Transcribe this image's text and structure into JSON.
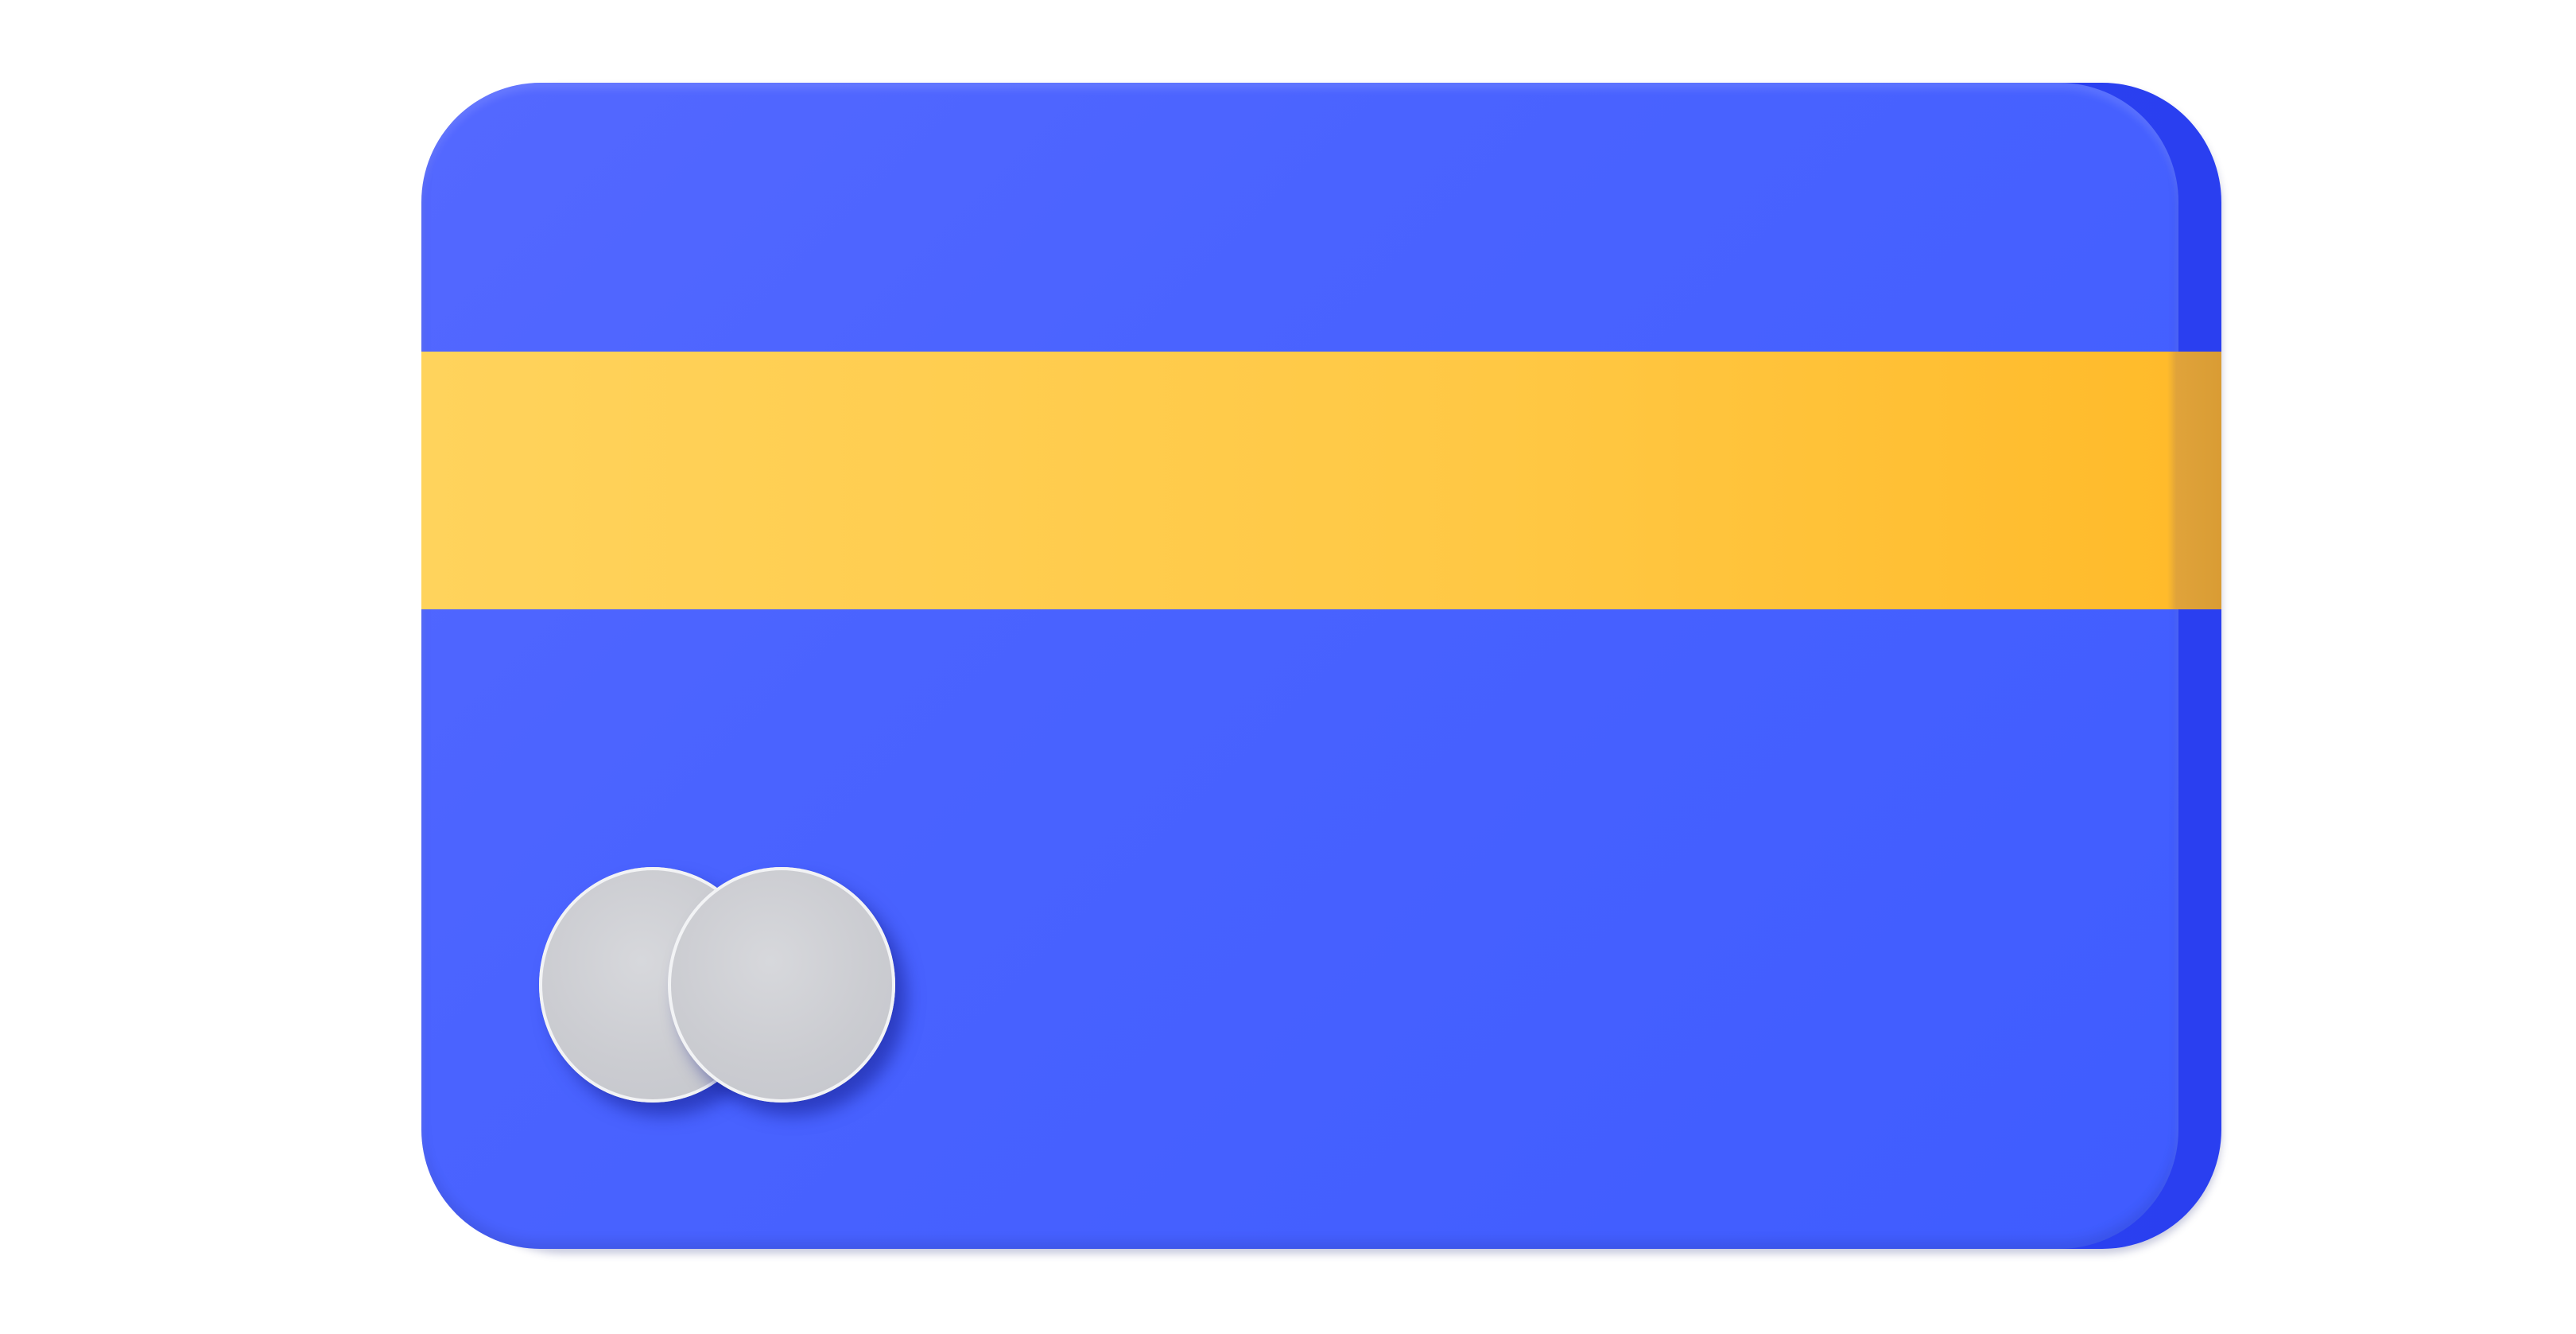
{
  "illustration": {
    "subject": "credit-card",
    "colors": {
      "card": "#4a63ff",
      "card_edge": "#2f47f5",
      "stripe": "#ffc844",
      "logo_circles": "#cbccd1",
      "background": "#ffffff"
    }
  }
}
